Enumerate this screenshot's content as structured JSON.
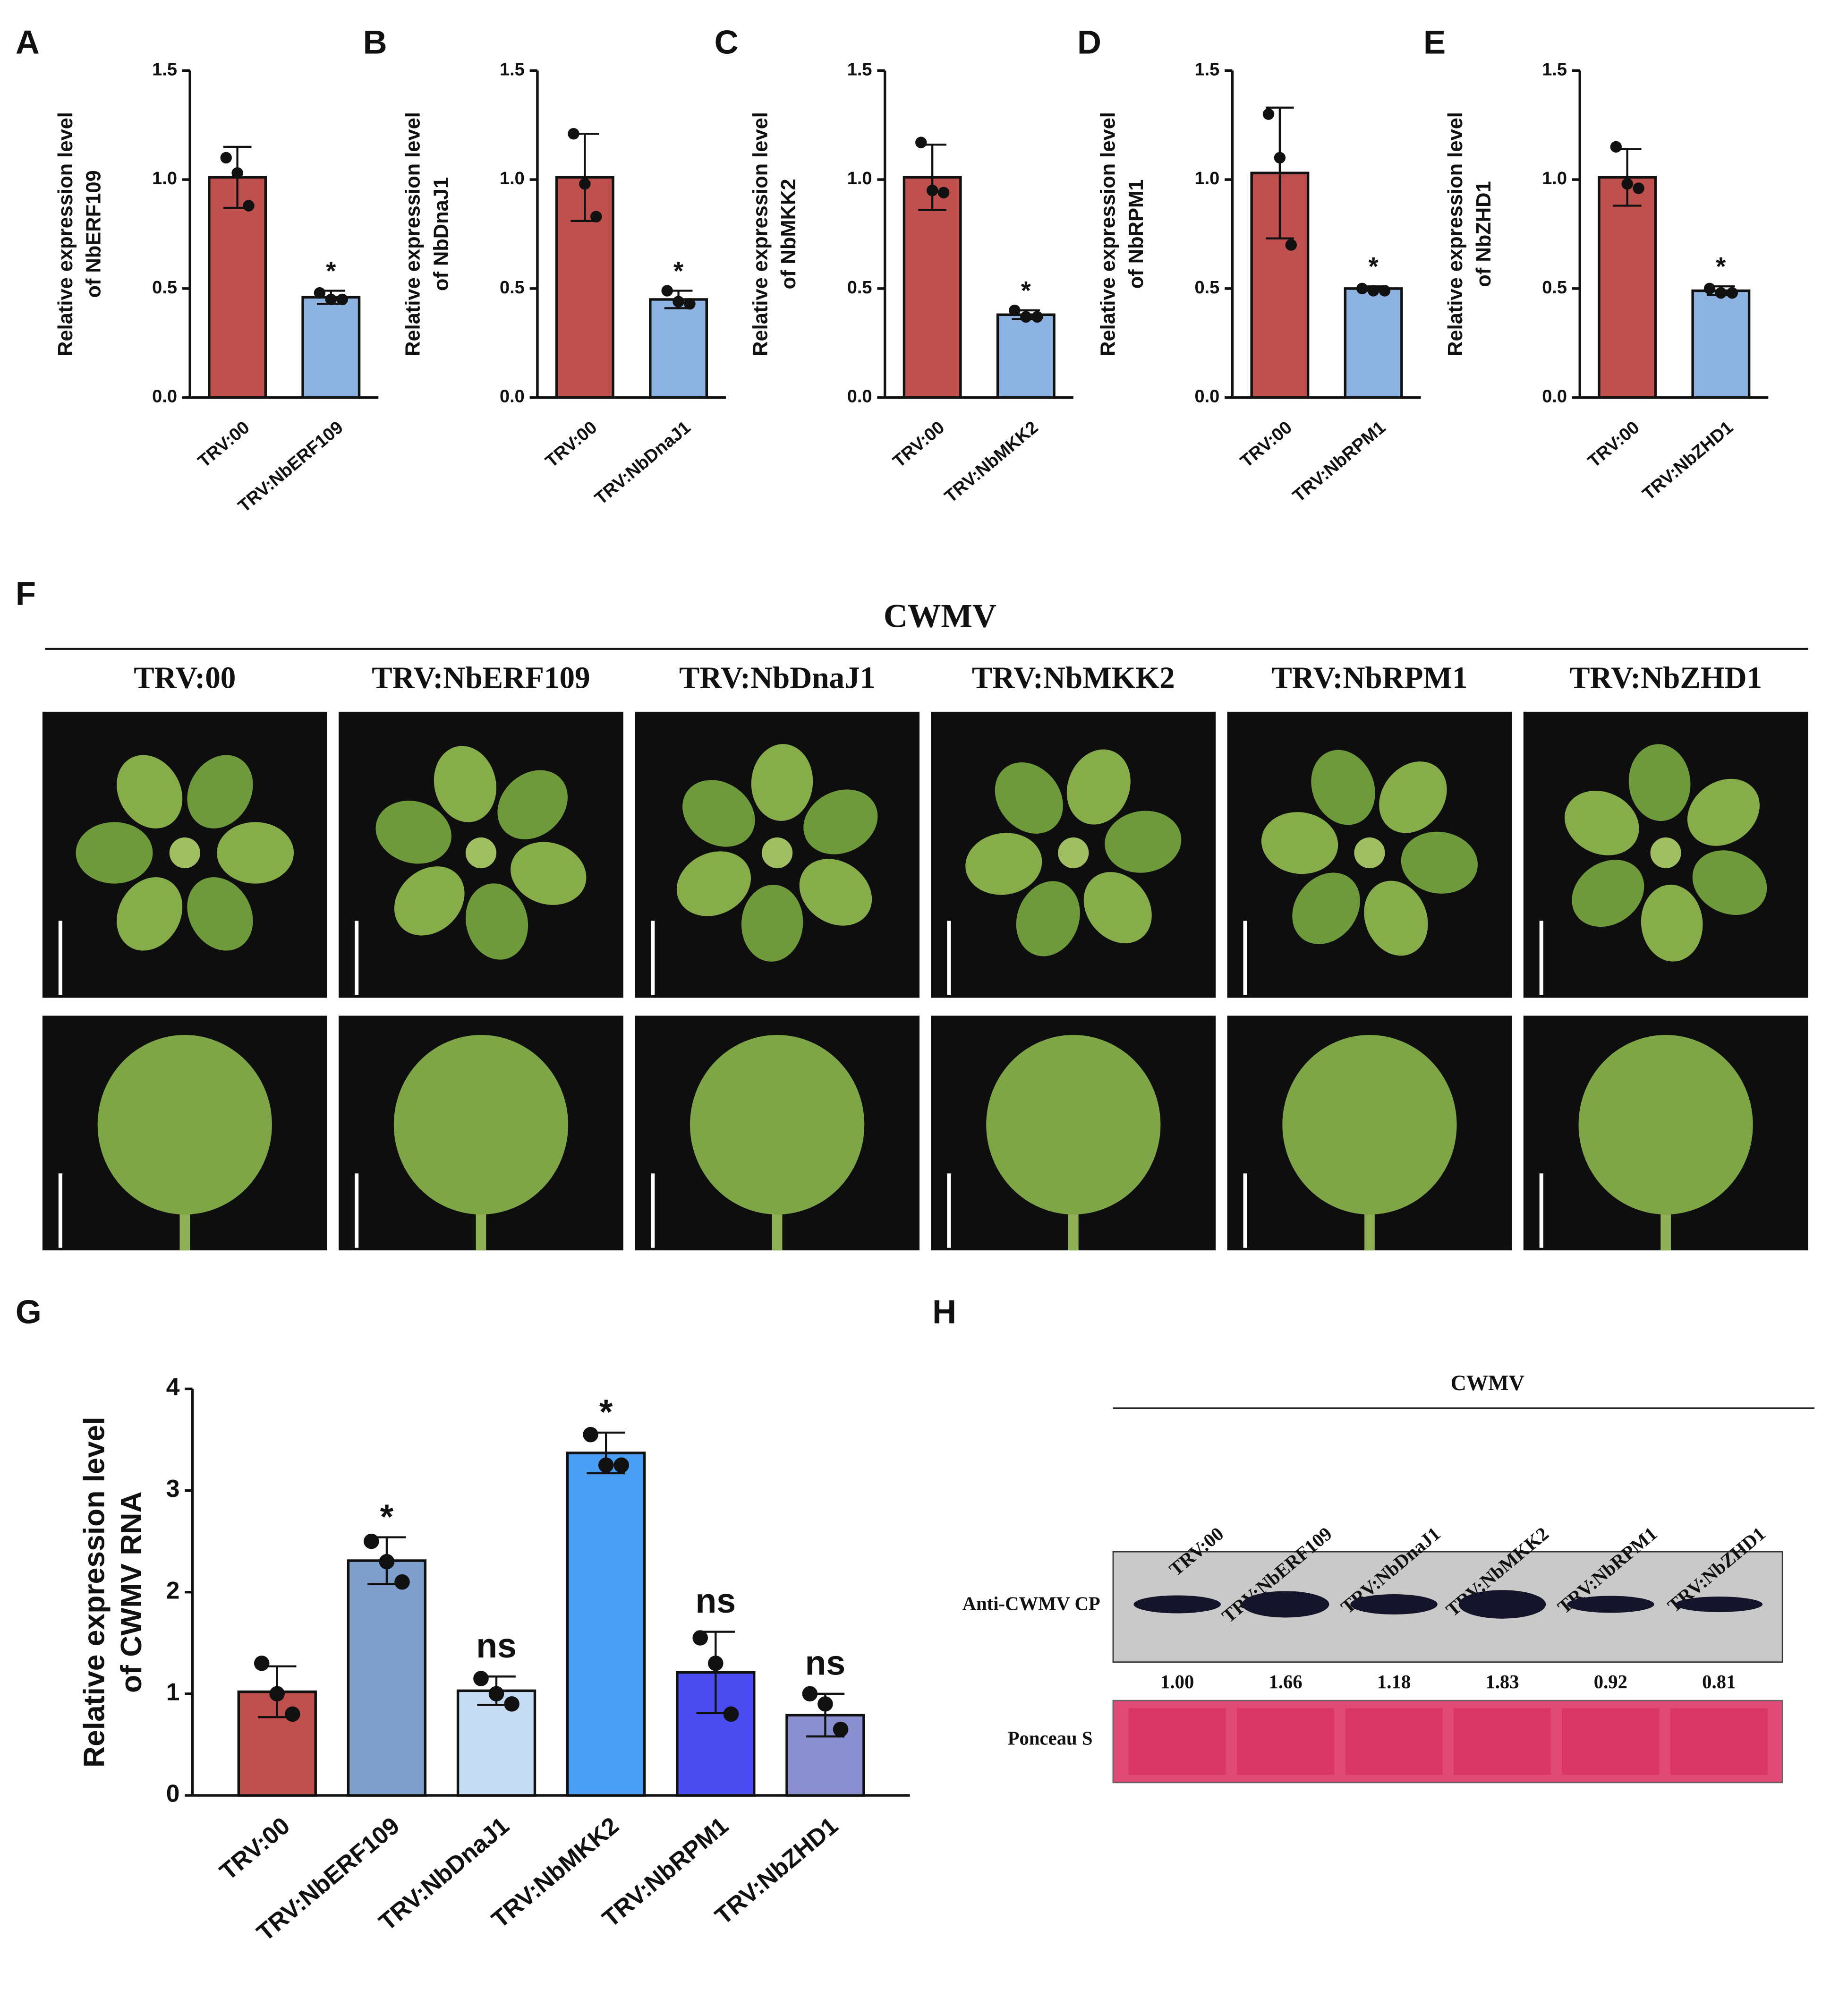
{
  "chart_data": [
    {
      "type": "bar",
      "label": "A",
      "ylabel": [
        "Relative expression level",
        "of NbERF109"
      ],
      "categories": [
        "TRV:00",
        "TRV:NbERF109"
      ],
      "values": [
        1.01,
        0.46
      ],
      "errors": [
        0.14,
        0.03
      ],
      "points": [
        [
          1.1,
          1.03,
          0.88
        ],
        [
          0.48,
          0.45,
          0.45
        ]
      ],
      "colors": [
        "#c0504d",
        "#8db3e2"
      ],
      "annotations": [
        null,
        "*"
      ],
      "ylim": [
        0,
        1.5
      ],
      "yticks": [
        {
          "value": 0,
          "label": "0.0"
        },
        {
          "value": 0.5,
          "label": "0.5"
        },
        {
          "value": 1,
          "label": "1.0"
        },
        {
          "value": 1.5,
          "label": "1.5"
        }
      ]
    },
    {
      "type": "bar",
      "label": "B",
      "ylabel": [
        "Relative expression level",
        "of NbDnaJ1"
      ],
      "categories": [
        "TRV:00",
        "TRV:NbDnaJ1"
      ],
      "values": [
        1.01,
        0.45
      ],
      "errors": [
        0.2,
        0.04
      ],
      "points": [
        [
          1.21,
          0.98,
          0.83
        ],
        [
          0.49,
          0.44,
          0.43
        ]
      ],
      "colors": [
        "#c0504d",
        "#8db3e2"
      ],
      "annotations": [
        null,
        "*"
      ],
      "ylim": [
        0,
        1.5
      ],
      "yticks": [
        {
          "value": 0,
          "label": "0.0"
        },
        {
          "value": 0.5,
          "label": "0.5"
        },
        {
          "value": 1,
          "label": "1.0"
        },
        {
          "value": 1.5,
          "label": "1.5"
        }
      ]
    },
    {
      "type": "bar",
      "label": "C",
      "ylabel": [
        "Relative expression level",
        "of NbMKK2"
      ],
      "categories": [
        "TRV:00",
        "TRV:NbMKK2"
      ],
      "values": [
        1.01,
        0.38
      ],
      "errors": [
        0.15,
        0.02
      ],
      "points": [
        [
          1.17,
          0.95,
          0.94
        ],
        [
          0.4,
          0.37,
          0.37
        ]
      ],
      "colors": [
        "#c0504d",
        "#8db3e2"
      ],
      "annotations": [
        null,
        "*"
      ],
      "ylim": [
        0,
        1.5
      ],
      "yticks": [
        {
          "value": 0,
          "label": "0.0"
        },
        {
          "value": 0.5,
          "label": "0.5"
        },
        {
          "value": 1,
          "label": "1.0"
        },
        {
          "value": 1.5,
          "label": "1.5"
        }
      ]
    },
    {
      "type": "bar",
      "label": "D",
      "ylabel": [
        "Relative expression level",
        "of NbRPM1"
      ],
      "categories": [
        "TRV:00",
        "TRV:NbRPM1"
      ],
      "values": [
        1.03,
        0.5
      ],
      "errors": [
        0.3,
        0.01
      ],
      "points": [
        [
          1.3,
          1.1,
          0.7
        ],
        [
          0.5,
          0.49,
          0.49
        ]
      ],
      "colors": [
        "#c0504d",
        "#8db3e2"
      ],
      "annotations": [
        null,
        "*"
      ],
      "ylim": [
        0,
        1.5
      ],
      "yticks": [
        {
          "value": 0,
          "label": "0.0"
        },
        {
          "value": 0.5,
          "label": "0.5"
        },
        {
          "value": 1,
          "label": "1.0"
        },
        {
          "value": 1.5,
          "label": "1.5"
        }
      ]
    },
    {
      "type": "bar",
      "label": "E",
      "ylabel": [
        "Relative expression level",
        "of NbZHD1"
      ],
      "categories": [
        "TRV:00",
        "TRV:NbZHD1"
      ],
      "values": [
        1.01,
        0.49
      ],
      "errors": [
        0.13,
        0.02
      ],
      "points": [
        [
          1.15,
          0.98,
          0.96
        ],
        [
          0.5,
          0.48,
          0.48
        ]
      ],
      "colors": [
        "#c0504d",
        "#8db3e2"
      ],
      "annotations": [
        null,
        "*"
      ],
      "ylim": [
        0,
        1.5
      ],
      "yticks": [
        {
          "value": 0,
          "label": "0.0"
        },
        {
          "value": 0.5,
          "label": "0.5"
        },
        {
          "value": 1,
          "label": "1.0"
        },
        {
          "value": 1.5,
          "label": "1.5"
        }
      ]
    },
    {
      "type": "bar",
      "label": "G",
      "ylabel": [
        "Relative expression level",
        "of CWMV RNA"
      ],
      "categories": [
        "TRV:00",
        "TRV:NbERF109",
        "TRV:NbDnaJ1",
        "TRV:NbMKK2",
        "TRV:NbRPM1",
        "TRV:NbZHD1"
      ],
      "values": [
        1.02,
        2.31,
        1.03,
        3.37,
        1.21,
        0.79
      ],
      "errors": [
        0.25,
        0.23,
        0.14,
        0.2,
        0.4,
        0.21
      ],
      "points": [
        [
          1.3,
          1.0,
          0.8
        ],
        [
          2.5,
          2.3,
          2.1
        ],
        [
          1.15,
          1.0,
          0.9
        ],
        [
          3.55,
          3.25,
          3.25
        ],
        [
          1.55,
          1.3,
          0.8
        ],
        [
          1.0,
          0.9,
          0.65
        ]
      ],
      "colors": [
        "#c0504d",
        "#7f9fcc",
        "#c6dcf5",
        "#4a9ff5",
        "#4a4cf0",
        "#8a8fd0"
      ],
      "annotations": [
        null,
        "*",
        "ns",
        "*",
        "ns",
        "ns"
      ],
      "ylim": [
        0,
        4
      ],
      "yticks": [
        0,
        1,
        2,
        3,
        4
      ]
    }
  ],
  "photo_panel": {
    "label": "F",
    "title": "CWMV",
    "columns": [
      "TRV:00",
      "TRV:NbERF109",
      "TRV:NbDnaJ1",
      "TRV:NbMKK2",
      "TRV:NbRPM1",
      "TRV:NbZHD1"
    ]
  },
  "blot_panel": {
    "label": "H",
    "title": "CWMV",
    "lanes": [
      "TRV:00",
      "TRV:NbERF109",
      "TRV:NbDnaJ1",
      "TRV:NbMKK2",
      "TRV:NbRPM1",
      "TRV:NbZHD1"
    ],
    "rows": [
      "Anti-CWMV CP",
      "Ponceau S"
    ],
    "quantification": [
      1.0,
      1.66,
      1.18,
      1.83,
      0.92,
      0.81
    ],
    "quantification_labels": [
      "1.00",
      "1.66",
      "1.18",
      "1.83",
      "0.92",
      "0.81"
    ]
  }
}
